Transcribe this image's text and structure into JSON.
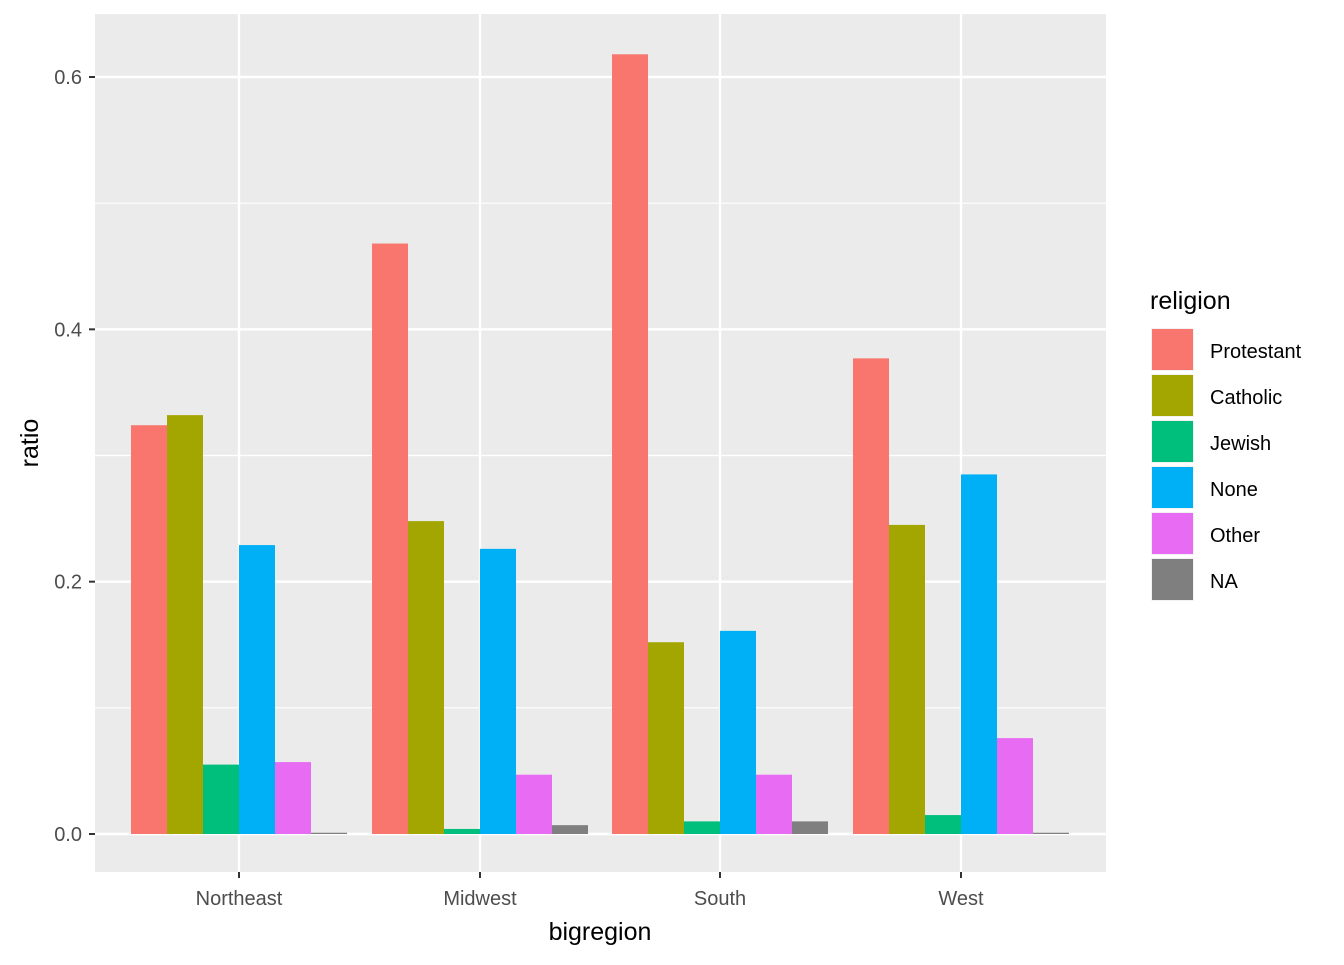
{
  "chart_data": {
    "type": "bar",
    "xlabel": "bigregion",
    "ylabel": "ratio",
    "categories": [
      "Northeast",
      "Midwest",
      "South",
      "West"
    ],
    "ylim": [
      -0.06,
      0.645
    ],
    "yticks": [
      0.0,
      0.2,
      0.4,
      0.6
    ],
    "ytick_labels": [
      "0.0",
      "0.2",
      "0.4",
      "0.6"
    ],
    "legend": {
      "title": "religion",
      "position": "right"
    },
    "grid": true,
    "series": [
      {
        "name": "Protestant",
        "color": "#F8766D",
        "values": [
          0.324,
          0.468,
          0.618,
          0.377
        ]
      },
      {
        "name": "Catholic",
        "color": "#A3A500",
        "values": [
          0.332,
          0.248,
          0.152,
          0.245
        ]
      },
      {
        "name": "Jewish",
        "color": "#00BF7D",
        "values": [
          0.055,
          0.004,
          0.01,
          0.015
        ]
      },
      {
        "name": "None",
        "color": "#00B0F6",
        "values": [
          0.229,
          0.226,
          0.161,
          0.285
        ]
      },
      {
        "name": "Other",
        "color": "#E76BF3",
        "values": [
          0.057,
          0.047,
          0.047,
          0.076
        ]
      },
      {
        "name": "NA",
        "color": "#7F7F7F",
        "values": [
          0.001,
          0.007,
          0.01,
          0.001
        ]
      }
    ]
  }
}
